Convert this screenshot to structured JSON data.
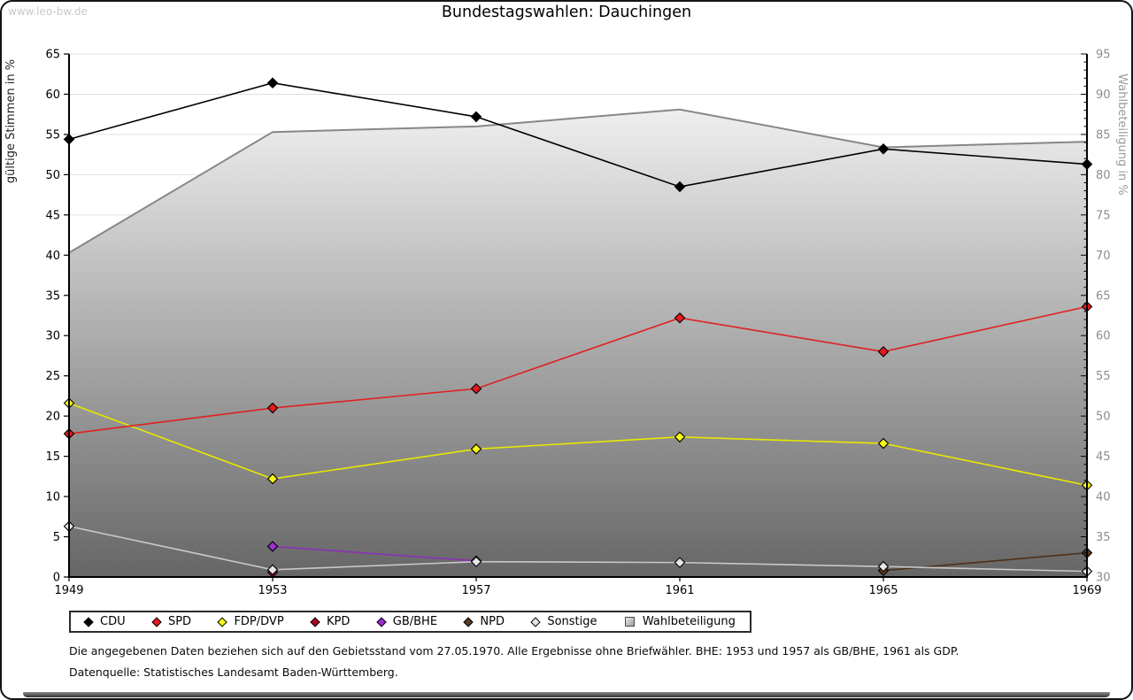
{
  "watermark": "www.leo-bw.de",
  "title": "Bundestagswahlen: Dauchingen",
  "footnotes": {
    "line1": "Die angegebenen Daten beziehen sich auf den Gebietsstand vom 27.05.1970. Alle Ergebnisse ohne Briefwähler. BHE: 1953 und 1957 als GB/BHE, 1961 als GDP.",
    "line2": "Datenquelle: Statistisches Landesamt Baden-Württemberg."
  },
  "chart_data": {
    "type": "line",
    "title": "Bundestagswahlen: Dauchingen",
    "x": [
      1949,
      1953,
      1957,
      1961,
      1965,
      1969
    ],
    "left_axis": {
      "label": "gültige Stimmen in %",
      "min": 0,
      "max": 65,
      "step": 5
    },
    "right_axis": {
      "label": "Wahlbeteiligung in %",
      "min": 30,
      "max": 95,
      "step": 5
    },
    "grid": true,
    "legend_position": "bottom",
    "colors": {
      "grid": "#e0e0e0",
      "axis": "#000000",
      "right_tick_text": "#8c8c8c",
      "area_top": "#ffffff",
      "area_bottom": "#666666",
      "area_border": "#878787"
    },
    "series": [
      {
        "name": "CDU",
        "marker": "diamond",
        "axis": "left",
        "line": "#000000",
        "fill": "#000000",
        "values": [
          54.4,
          61.4,
          57.2,
          48.5,
          53.2,
          51.3
        ]
      },
      {
        "name": "SPD",
        "marker": "diamond",
        "axis": "left",
        "line": "#e02020",
        "fill": "#e41a1c",
        "values": [
          17.8,
          21.0,
          23.4,
          32.2,
          28.0,
          33.6
        ]
      },
      {
        "name": "FDP/DVP",
        "marker": "diamond",
        "axis": "left",
        "line": "#e8e800",
        "fill": "#f7f718",
        "values": [
          21.6,
          12.2,
          15.9,
          17.4,
          16.6,
          11.4
        ]
      },
      {
        "name": "KPD",
        "marker": "diamond",
        "axis": "left",
        "line": "#b00020",
        "fill": "#b00020",
        "values": [
          null,
          0.6,
          null,
          null,
          null,
          null
        ]
      },
      {
        "name": "GB/BHE",
        "marker": "diamond",
        "axis": "left",
        "line": "#8c2fb8",
        "fill": "#9b30d0",
        "values": [
          null,
          3.8,
          2.0,
          null,
          null,
          null
        ]
      },
      {
        "name": "NPD",
        "marker": "diamond",
        "axis": "left",
        "line": "#4f3018",
        "fill": "#5a3a22",
        "values": [
          null,
          null,
          null,
          null,
          0.8,
          3.0
        ]
      },
      {
        "name": "Sonstige",
        "marker": "diamond",
        "axis": "left",
        "line": "#c8c8c8",
        "fill": "#e6e6e6",
        "values": [
          6.3,
          0.9,
          1.9,
          1.8,
          1.3,
          0.7
        ]
      },
      {
        "name": "Wahlbeteiligung",
        "marker": "square",
        "axis": "right",
        "line": "#878787",
        "fill": "#c8c8c8",
        "values": [
          70.3,
          85.3,
          86.0,
          88.1,
          83.4,
          84.1
        ]
      }
    ]
  }
}
